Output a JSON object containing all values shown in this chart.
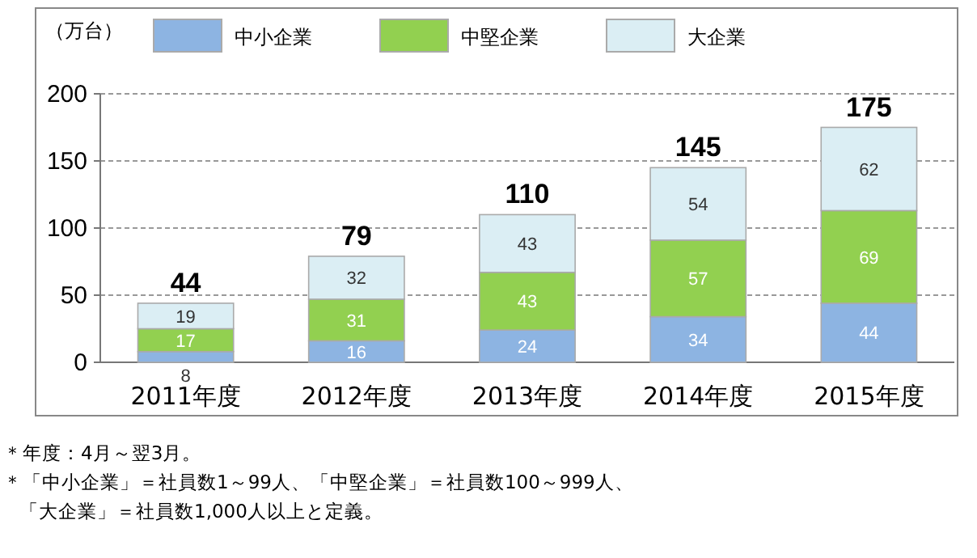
{
  "chart_data": {
    "type": "bar",
    "stacked": true,
    "ylabel": "（万台）",
    "categories": [
      "2011年度",
      "2012年度",
      "2013年度",
      "2014年度",
      "2015年度"
    ],
    "series": [
      {
        "name": "中小企業",
        "color": "#8db4e2",
        "values": [
          8,
          16,
          24,
          34,
          44
        ]
      },
      {
        "name": "中堅企業",
        "color": "#92d050",
        "values": [
          17,
          31,
          43,
          57,
          69
        ]
      },
      {
        "name": "大企業",
        "color": "#dbeef4",
        "values": [
          19,
          32,
          43,
          54,
          62
        ]
      }
    ],
    "totals": [
      "44",
      "79",
      "110",
      "145",
      "175"
    ],
    "data_labels": true,
    "ylim": [
      0,
      200
    ],
    "yticks": [
      0,
      50,
      100,
      150,
      200
    ],
    "grid": "y",
    "legend": "top",
    "annotations": [
      "＊年度：4月～翌3月。",
      "＊「中小企業」＝社員数1～99人、「中堅企業」＝社員数100～999人、",
      "「大企業」＝社員数1,000人以上と定義。"
    ]
  }
}
